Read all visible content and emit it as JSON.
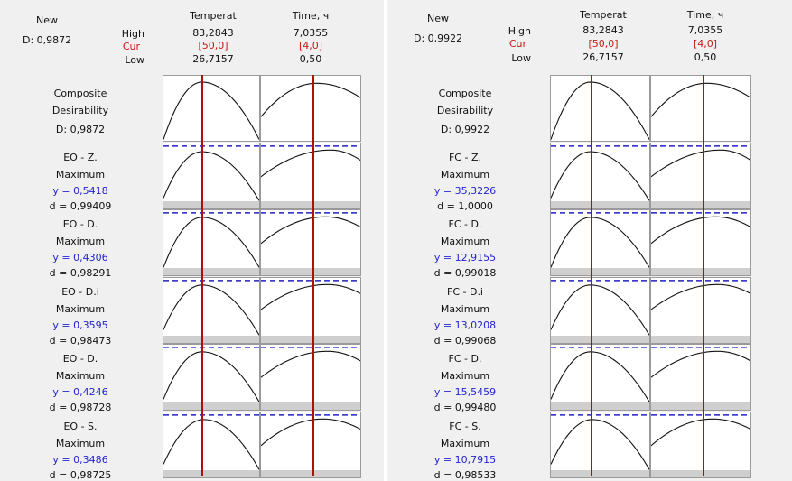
{
  "chart_data": {
    "type": "line",
    "panels": [
      {
        "new_label": "New",
        "d_value": "D: 0,9872",
        "row_labels": {
          "high": "High",
          "cur": "Cur",
          "low": "Low"
        },
        "columns": [
          {
            "name": "Temperat",
            "high": "83,2843",
            "cur": "[50,0]",
            "low": "26,7157"
          },
          {
            "name": "Time, ч",
            "high": "7,0355",
            "cur": "[4,0]",
            "low": "0,50"
          }
        ],
        "cur_fraction": [
          0.41,
          0.53
        ],
        "responses": [
          {
            "label1": "Composite",
            "label2": "Desirability",
            "y": "",
            "d": "D: 0,9872",
            "target": false,
            "curves": [
              {
                "apex_x": 0.4,
                "apex_y": 0.04,
                "left_y": 1.0,
                "right_y": 1.0
              },
              {
                "apex_x": 0.56,
                "apex_y": 0.06,
                "left_y": 0.62,
                "right_y": 0.3
              }
            ]
          },
          {
            "label1": "EO - Z.",
            "label2": "Maximum",
            "y": "y = 0,5418",
            "d": "d = 0,99409",
            "target": true,
            "curves": [
              {
                "apex_x": 0.4,
                "apex_y": 0.08,
                "left_y": 0.95,
                "right_y": 1.0
              },
              {
                "apex_x": 0.7,
                "apex_y": 0.05,
                "left_y": 0.55,
                "right_y": 0.24
              }
            ]
          },
          {
            "label1": "EO - D.",
            "label2": "Maximum",
            "y": "y = 0,4306",
            "d": "d = 0,98291",
            "target": true,
            "curves": [
              {
                "apex_x": 0.4,
                "apex_y": 0.06,
                "left_y": 1.0,
                "right_y": 1.0
              },
              {
                "apex_x": 0.65,
                "apex_y": 0.05,
                "left_y": 0.55,
                "right_y": 0.24
              }
            ]
          },
          {
            "label1": "EO - D.i",
            "label2": "Maximum",
            "y": "y = 0,3595",
            "d": "d = 0,98473",
            "target": true,
            "curves": [
              {
                "apex_x": 0.4,
                "apex_y": 0.06,
                "left_y": 0.9,
                "right_y": 1.0
              },
              {
                "apex_x": 0.67,
                "apex_y": 0.05,
                "left_y": 0.52,
                "right_y": 0.22
              }
            ]
          },
          {
            "label1": "EO - D.",
            "label2": "Maximum",
            "y": "y = 0,4246",
            "d": "d = 0,98728",
            "target": true,
            "curves": [
              {
                "apex_x": 0.4,
                "apex_y": 0.06,
                "left_y": 0.95,
                "right_y": 1.0
              },
              {
                "apex_x": 0.67,
                "apex_y": 0.05,
                "left_y": 0.54,
                "right_y": 0.23
              }
            ]
          },
          {
            "label1": "EO - S.",
            "label2": "Maximum",
            "y": "y = 0,3486",
            "d": "d = 0,98725",
            "target": true,
            "curves": [
              {
                "apex_x": 0.42,
                "apex_y": 0.06,
                "left_y": 0.9,
                "right_y": 1.0
              },
              {
                "apex_x": 0.62,
                "apex_y": 0.05,
                "left_y": 0.55,
                "right_y": 0.24
              }
            ]
          }
        ]
      },
      {
        "new_label": "New",
        "d_value": "D: 0,9922",
        "row_labels": {
          "high": "High",
          "cur": "Cur",
          "low": "Low"
        },
        "columns": [
          {
            "name": "Temperat",
            "high": "83,2843",
            "cur": "[50,0]",
            "low": "26,7157"
          },
          {
            "name": "Time, ч",
            "high": "7,0355",
            "cur": "[4,0]",
            "low": "0,50"
          }
        ],
        "cur_fraction": [
          0.41,
          0.53
        ],
        "responses": [
          {
            "label1": "Composite",
            "label2": "Desirability",
            "y": "",
            "d": "D: 0,9922",
            "target": false,
            "curves": [
              {
                "apex_x": 0.4,
                "apex_y": 0.04,
                "left_y": 1.0,
                "right_y": 1.0
              },
              {
                "apex_x": 0.56,
                "apex_y": 0.06,
                "left_y": 0.62,
                "right_y": 0.3
              }
            ]
          },
          {
            "label1": "FC - Z.",
            "label2": "Maximum",
            "y": "y = 35,3226",
            "d": "d = 1,0000",
            "target": true,
            "curves": [
              {
                "apex_x": 0.4,
                "apex_y": 0.08,
                "left_y": 0.95,
                "right_y": 1.0
              },
              {
                "apex_x": 0.7,
                "apex_y": 0.05,
                "left_y": 0.55,
                "right_y": 0.24
              }
            ]
          },
          {
            "label1": "FC - D.",
            "label2": "Maximum",
            "y": "y = 12,9155",
            "d": "d = 0,99018",
            "target": true,
            "curves": [
              {
                "apex_x": 0.4,
                "apex_y": 0.06,
                "left_y": 1.0,
                "right_y": 1.0
              },
              {
                "apex_x": 0.65,
                "apex_y": 0.05,
                "left_y": 0.55,
                "right_y": 0.24
              }
            ]
          },
          {
            "label1": "FC - D.i",
            "label2": "Maximum",
            "y": "y = 13,0208",
            "d": "d = 0,99068",
            "target": true,
            "curves": [
              {
                "apex_x": 0.4,
                "apex_y": 0.06,
                "left_y": 0.9,
                "right_y": 1.0
              },
              {
                "apex_x": 0.67,
                "apex_y": 0.05,
                "left_y": 0.52,
                "right_y": 0.22
              }
            ]
          },
          {
            "label1": "FC - D.",
            "label2": "Maximum",
            "y": "y = 15,5459",
            "d": "d = 0,99480",
            "target": true,
            "curves": [
              {
                "apex_x": 0.4,
                "apex_y": 0.06,
                "left_y": 0.95,
                "right_y": 1.0
              },
              {
                "apex_x": 0.67,
                "apex_y": 0.05,
                "left_y": 0.54,
                "right_y": 0.23
              }
            ]
          },
          {
            "label1": "FC - S.",
            "label2": "Maximum",
            "y": "y = 10,7915",
            "d": "d = 0,98533",
            "target": true,
            "curves": [
              {
                "apex_x": 0.42,
                "apex_y": 0.06,
                "left_y": 0.9,
                "right_y": 1.0
              },
              {
                "apex_x": 0.62,
                "apex_y": 0.05,
                "left_y": 0.55,
                "right_y": 0.24
              }
            ]
          }
        ]
      }
    ]
  },
  "colors": {
    "curve": "#111111",
    "cur_line": "#b00d0d",
    "target_line": "#2020c8",
    "cur_text": "#c81818",
    "y_text": "#2323d2"
  }
}
